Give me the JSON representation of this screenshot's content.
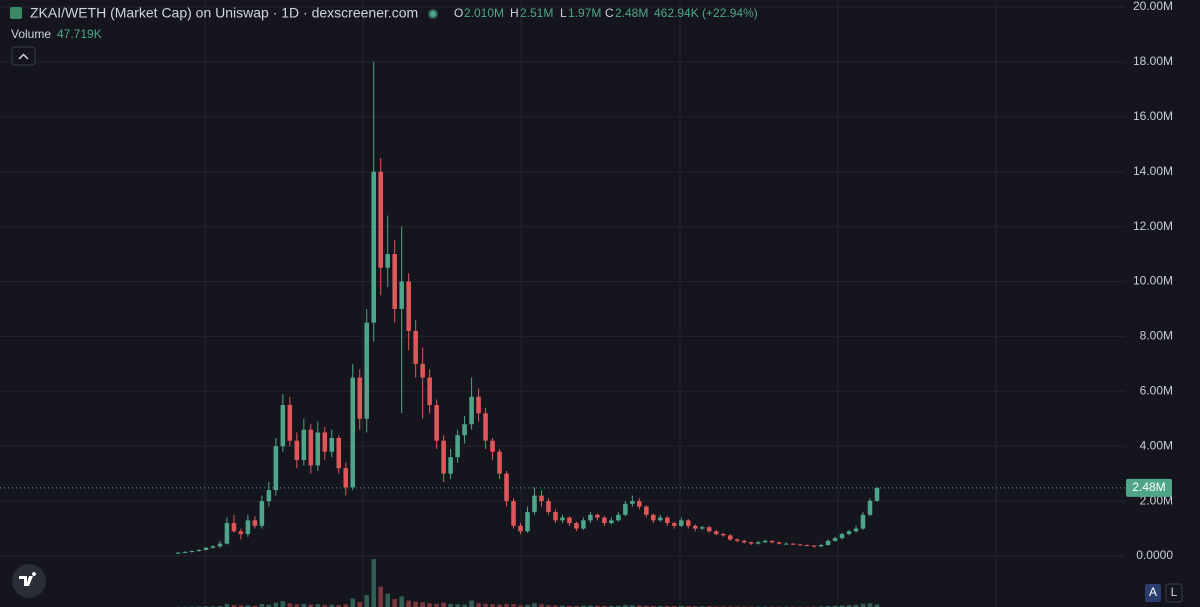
{
  "header": {
    "title": "ZKAI/WETH (Market Cap) on Uniswap · 1D · dexscreener.com",
    "open_label": "O",
    "open": "2.010M",
    "high_label": "H",
    "high": "2.51M",
    "low_label": "L",
    "low": "1.97M",
    "close_label": "C",
    "close": "2.48M",
    "change": "462.94K (+22.94%)",
    "volume_label": "Volume",
    "volume_value": "47.719K"
  },
  "buttons": {
    "auto": "A",
    "log": "L"
  },
  "chart_data": {
    "type": "candlestick",
    "up_color": "#4fa58a",
    "down_color": "#e0575a",
    "grid": true,
    "ylim": [
      0,
      20
    ],
    "yticks": [
      {
        "value": 0,
        "label": "0.0000"
      },
      {
        "value": 2,
        "label": "2.00M"
      },
      {
        "value": 4,
        "label": "4.00M"
      },
      {
        "value": 6,
        "label": "6.00M"
      },
      {
        "value": 8,
        "label": "8.00M"
      },
      {
        "value": 10,
        "label": "10.00M"
      },
      {
        "value": 12,
        "label": "12.00M"
      },
      {
        "value": 14,
        "label": "14.00M"
      },
      {
        "value": 16,
        "label": "16.00M"
      },
      {
        "value": 18,
        "label": "18.00M"
      },
      {
        "value": 20,
        "label": "20.00M"
      }
    ],
    "last_price": {
      "value": 2.48,
      "label": "2.48M"
    },
    "ohlc": [
      [
        0.1,
        0.14,
        0.09,
        0.12
      ],
      [
        0.12,
        0.17,
        0.11,
        0.15
      ],
      [
        0.15,
        0.2,
        0.13,
        0.18
      ],
      [
        0.18,
        0.25,
        0.16,
        0.22
      ],
      [
        0.22,
        0.33,
        0.2,
        0.3
      ],
      [
        0.3,
        0.4,
        0.27,
        0.35
      ],
      [
        0.35,
        0.55,
        0.3,
        0.45
      ],
      [
        0.45,
        1.4,
        0.42,
        1.2
      ],
      [
        1.2,
        1.5,
        0.85,
        0.9
      ],
      [
        0.9,
        1.0,
        0.6,
        0.8
      ],
      [
        0.8,
        1.5,
        0.7,
        1.3
      ],
      [
        1.3,
        1.45,
        1.0,
        1.1
      ],
      [
        1.1,
        2.2,
        1.0,
        2.0
      ],
      [
        2.0,
        2.7,
        1.8,
        2.4
      ],
      [
        2.4,
        4.3,
        2.2,
        4.0
      ],
      [
        4.0,
        5.9,
        3.8,
        5.5
      ],
      [
        5.5,
        5.8,
        4.0,
        4.2
      ],
      [
        4.2,
        4.5,
        3.2,
        3.5
      ],
      [
        3.5,
        5.0,
        3.3,
        4.6
      ],
      [
        4.6,
        4.8,
        3.0,
        3.3
      ],
      [
        3.3,
        4.9,
        3.1,
        4.5
      ],
      [
        4.5,
        4.7,
        3.5,
        3.8
      ],
      [
        3.8,
        4.6,
        3.6,
        4.3
      ],
      [
        4.3,
        4.4,
        3.0,
        3.2
      ],
      [
        3.2,
        3.4,
        2.2,
        2.5
      ],
      [
        2.5,
        7.0,
        2.4,
        6.5
      ],
      [
        6.5,
        6.8,
        4.6,
        5.0
      ],
      [
        5.0,
        9.0,
        4.5,
        8.5
      ],
      [
        8.5,
        18.0,
        7.8,
        14.0
      ],
      [
        14.0,
        14.5,
        9.5,
        10.5
      ],
      [
        10.5,
        12.4,
        9.8,
        11.0
      ],
      [
        11.0,
        11.5,
        8.5,
        9.0
      ],
      [
        9.0,
        12.0,
        5.2,
        10.0
      ],
      [
        10.0,
        10.3,
        7.5,
        8.2
      ],
      [
        8.2,
        8.6,
        6.5,
        7.0
      ],
      [
        7.0,
        7.6,
        5.0,
        6.5
      ],
      [
        6.5,
        6.8,
        5.2,
        5.5
      ],
      [
        5.5,
        5.7,
        3.9,
        4.2
      ],
      [
        4.2,
        4.4,
        2.7,
        3.0
      ],
      [
        3.0,
        3.9,
        2.8,
        3.6
      ],
      [
        3.6,
        4.6,
        3.4,
        4.4
      ],
      [
        4.4,
        5.1,
        4.1,
        4.8
      ],
      [
        4.8,
        6.5,
        4.6,
        5.8
      ],
      [
        5.8,
        6.1,
        4.9,
        5.2
      ],
      [
        5.2,
        5.4,
        3.9,
        4.2
      ],
      [
        4.2,
        4.3,
        3.5,
        3.8
      ],
      [
        3.8,
        3.9,
        2.8,
        3.0
      ],
      [
        3.0,
        3.1,
        1.8,
        2.0
      ],
      [
        2.0,
        2.1,
        1.0,
        1.1
      ],
      [
        1.1,
        1.2,
        0.8,
        0.9
      ],
      [
        0.9,
        1.8,
        0.85,
        1.6
      ],
      [
        1.6,
        2.5,
        1.5,
        2.2
      ],
      [
        2.2,
        2.4,
        1.8,
        2.0
      ],
      [
        2.0,
        2.1,
        1.5,
        1.6
      ],
      [
        1.6,
        1.7,
        1.2,
        1.3
      ],
      [
        1.3,
        1.5,
        1.2,
        1.4
      ],
      [
        1.4,
        1.45,
        1.1,
        1.2
      ],
      [
        1.2,
        1.25,
        0.9,
        1.0
      ],
      [
        1.0,
        1.4,
        0.95,
        1.3
      ],
      [
        1.3,
        1.6,
        1.2,
        1.5
      ],
      [
        1.5,
        1.55,
        1.3,
        1.4
      ],
      [
        1.4,
        1.45,
        1.1,
        1.2
      ],
      [
        1.2,
        1.4,
        1.15,
        1.3
      ],
      [
        1.3,
        1.6,
        1.25,
        1.5
      ],
      [
        1.5,
        2.0,
        1.45,
        1.9
      ],
      [
        1.9,
        2.2,
        1.8,
        2.0
      ],
      [
        2.0,
        2.1,
        1.7,
        1.8
      ],
      [
        1.8,
        1.85,
        1.4,
        1.5
      ],
      [
        1.5,
        1.55,
        1.2,
        1.3
      ],
      [
        1.3,
        1.5,
        1.25,
        1.4
      ],
      [
        1.4,
        1.45,
        1.1,
        1.2
      ],
      [
        1.2,
        1.25,
        1.0,
        1.1
      ],
      [
        1.1,
        1.4,
        1.05,
        1.3
      ],
      [
        1.3,
        1.35,
        1.0,
        1.1
      ],
      [
        1.1,
        1.15,
        0.9,
        1.0
      ],
      [
        1.0,
        1.1,
        0.95,
        1.05
      ],
      [
        1.05,
        1.1,
        0.85,
        0.9
      ],
      [
        0.9,
        0.95,
        0.75,
        0.8
      ],
      [
        0.8,
        0.85,
        0.7,
        0.75
      ],
      [
        0.75,
        0.8,
        0.55,
        0.6
      ],
      [
        0.6,
        0.65,
        0.5,
        0.55
      ],
      [
        0.55,
        0.6,
        0.45,
        0.5
      ],
      [
        0.5,
        0.52,
        0.4,
        0.45
      ],
      [
        0.45,
        0.55,
        0.42,
        0.5
      ],
      [
        0.5,
        0.6,
        0.48,
        0.55
      ],
      [
        0.55,
        0.57,
        0.46,
        0.5
      ],
      [
        0.5,
        0.52,
        0.42,
        0.45
      ],
      [
        0.45,
        0.5,
        0.42,
        0.45
      ],
      [
        0.45,
        0.47,
        0.4,
        0.42
      ],
      [
        0.42,
        0.44,
        0.38,
        0.4
      ],
      [
        0.4,
        0.42,
        0.36,
        0.38
      ],
      [
        0.38,
        0.4,
        0.3,
        0.35
      ],
      [
        0.35,
        0.45,
        0.33,
        0.4
      ],
      [
        0.4,
        0.6,
        0.38,
        0.55
      ],
      [
        0.55,
        0.7,
        0.52,
        0.65
      ],
      [
        0.65,
        0.85,
        0.6,
        0.8
      ],
      [
        0.8,
        0.95,
        0.75,
        0.9
      ],
      [
        0.9,
        1.1,
        0.85,
        1.0
      ],
      [
        1.0,
        1.6,
        0.95,
        1.5
      ],
      [
        1.5,
        2.1,
        1.45,
        2.01
      ],
      [
        2.01,
        2.51,
        1.97,
        2.48
      ]
    ],
    "volume": [
      5,
      6,
      8,
      10,
      14,
      12,
      18,
      60,
      40,
      30,
      35,
      25,
      55,
      45,
      80,
      110,
      70,
      50,
      60,
      45,
      55,
      40,
      40,
      35,
      50,
      160,
      90,
      220,
      900,
      380,
      250,
      150,
      200,
      120,
      100,
      90,
      70,
      60,
      80,
      55,
      50,
      45,
      120,
      70,
      60,
      50,
      45,
      60,
      55,
      30,
      40,
      70,
      50,
      35,
      30,
      25,
      22,
      20,
      25,
      30,
      25,
      20,
      22,
      25,
      40,
      35,
      30,
      25,
      20,
      22,
      20,
      18,
      22,
      18,
      15,
      14,
      15,
      12,
      12,
      10,
      10,
      9,
      8,
      9,
      10,
      8,
      8,
      7,
      7,
      6,
      6,
      8,
      12,
      20,
      25,
      30,
      35,
      40,
      60,
      70,
      47.719
    ]
  }
}
